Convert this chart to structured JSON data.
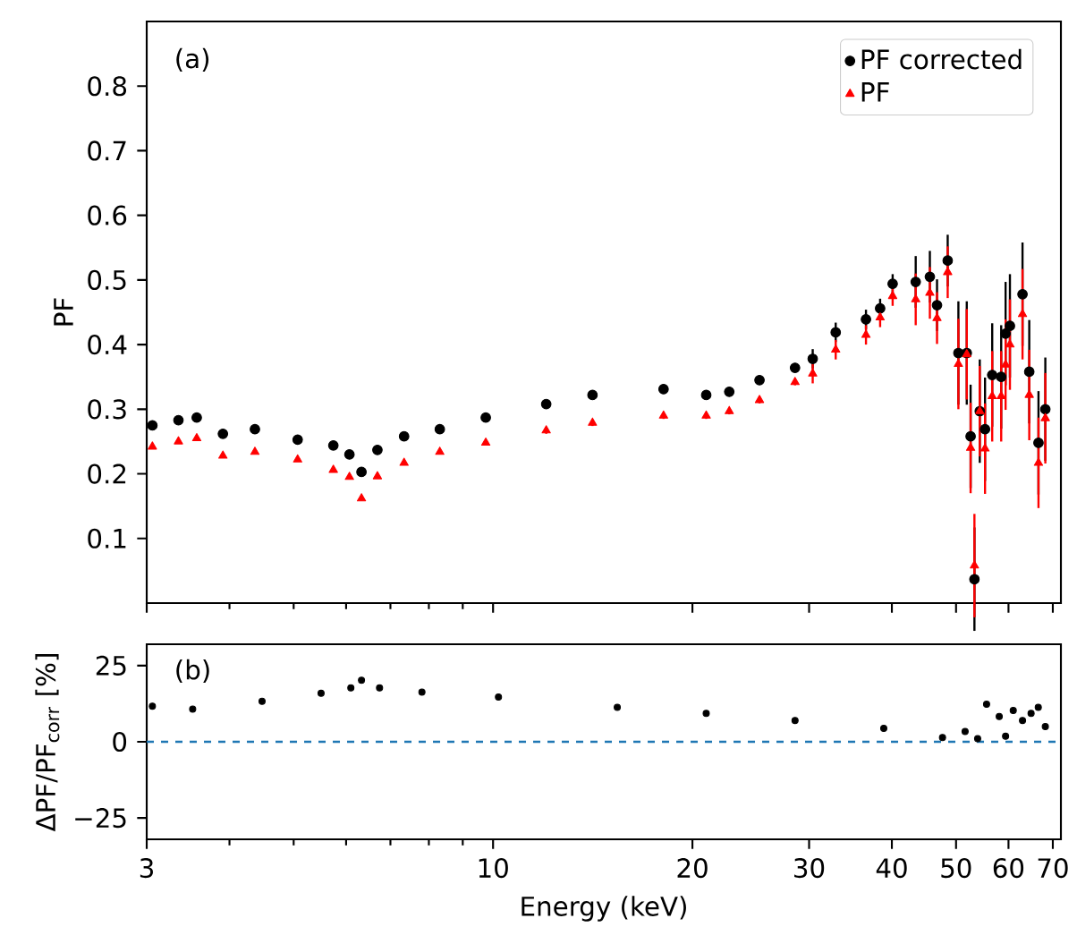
{
  "chart_data": [
    {
      "type": "scatter",
      "ylabel": "PF",
      "annotations": [
        "(a)"
      ],
      "log": "x",
      "xlim": [
        3,
        72
      ],
      "ylim": [
        0,
        0.9
      ],
      "xticks": [
        3,
        10,
        20,
        30,
        40,
        50,
        60,
        70
      ],
      "yticks": [
        0.1,
        0.2,
        0.3,
        0.4,
        0.5,
        0.6,
        0.7,
        0.8
      ],
      "tick_labels": "y",
      "legend": "top right",
      "x": [
        3.06,
        3.35,
        3.57,
        3.91,
        4.37,
        5.07,
        5.74,
        6.07,
        6.33,
        6.69,
        7.34,
        8.31,
        9.75,
        12.03,
        14.13,
        18.09,
        20.98,
        22.73,
        25.25,
        28.57,
        30.38,
        32.91,
        36.56,
        38.41,
        40.11,
        43.46,
        45.65,
        46.8,
        48.57,
        50.41,
        51.9,
        52.6,
        53.3,
        54.3,
        55.3,
        56.7,
        58.5,
        59.4,
        60.3,
        63.0,
        64.5,
        66.6,
        68.2
      ],
      "series": [
        {
          "name": "PF corrected",
          "color": "#000000",
          "marker": "circle",
          "values": [
            0.275,
            0.283,
            0.287,
            0.262,
            0.269,
            0.253,
            0.244,
            0.23,
            0.203,
            0.237,
            0.258,
            0.269,
            0.287,
            0.308,
            0.322,
            0.331,
            0.322,
            0.327,
            0.345,
            0.364,
            0.378,
            0.419,
            0.439,
            0.456,
            0.494,
            0.497,
            0.505,
            0.461,
            0.53,
            0.387,
            0.387,
            0.258,
            0.037,
            0.297,
            0.269,
            0.353,
            0.35,
            0.417,
            0.429,
            0.478,
            0.358,
            0.248,
            0.3
          ],
          "errors": [
            0.003,
            0.003,
            0.003,
            0.003,
            0.003,
            0.003,
            0.003,
            0.003,
            0.003,
            0.003,
            0.003,
            0.003,
            0.003,
            0.005,
            0.005,
            0.005,
            0.005,
            0.005,
            0.005,
            0.005,
            0.015,
            0.015,
            0.015,
            0.015,
            0.015,
            0.04,
            0.04,
            0.04,
            0.04,
            0.08,
            0.08,
            0.08,
            0.08,
            0.08,
            0.08,
            0.08,
            0.08,
            0.08,
            0.08,
            0.08,
            0.08,
            0.08,
            0.08
          ]
        },
        {
          "name": "PF",
          "color": "#ff0000",
          "marker": "triangle",
          "values": [
            0.242,
            0.25,
            0.255,
            0.228,
            0.234,
            0.222,
            0.206,
            0.195,
            0.162,
            0.196,
            0.217,
            0.234,
            0.248,
            0.267,
            0.279,
            0.29,
            0.29,
            0.297,
            0.314,
            0.342,
            0.355,
            0.392,
            0.415,
            0.442,
            0.475,
            0.47,
            0.48,
            0.441,
            0.512,
            0.37,
            0.385,
            0.24,
            0.058,
            0.297,
            0.239,
            0.32,
            0.32,
            0.369,
            0.4,
            0.447,
            0.322,
            0.217,
            0.286
          ],
          "errors": [
            0.003,
            0.003,
            0.003,
            0.003,
            0.003,
            0.003,
            0.003,
            0.003,
            0.003,
            0.003,
            0.003,
            0.003,
            0.003,
            0.005,
            0.005,
            0.005,
            0.005,
            0.005,
            0.005,
            0.005,
            0.015,
            0.015,
            0.015,
            0.015,
            0.015,
            0.04,
            0.04,
            0.04,
            0.04,
            0.07,
            0.07,
            0.07,
            0.08,
            0.07,
            0.07,
            0.07,
            0.07,
            0.07,
            0.07,
            0.07,
            0.07,
            0.07,
            0.07
          ]
        }
      ]
    },
    {
      "type": "scatter",
      "xlabel": "Energy (keV)",
      "ylabel": "ΔPF/PF$_{corr}$ [%]",
      "annotations": [
        "(b)"
      ],
      "log": "x",
      "xlim": [
        3,
        72
      ],
      "ylim": [
        -32,
        32
      ],
      "xticks": [
        3,
        10,
        20,
        30,
        40,
        50,
        60,
        70
      ],
      "yticks": [
        {
          "value": -25,
          "label": "−25"
        },
        0,
        25
      ],
      "ref_lines": [
        {
          "axis": "y",
          "value": 0,
          "color": "#1f77b4",
          "line_style": "dashed"
        }
      ],
      "x": [
        3.06,
        3.52,
        4.48,
        5.5,
        6.1,
        6.33,
        6.74,
        7.81,
        10.19,
        15.4,
        20.98,
        28.57,
        38.9,
        47.7,
        51.6,
        53.9,
        55.6,
        58.1,
        59.4,
        61.0,
        63.0,
        64.9,
        66.55,
        68.2
      ],
      "series": [
        {
          "color": "#000000",
          "marker": "circle",
          "values": [
            11.7,
            10.7,
            13.3,
            15.9,
            17.7,
            20.2,
            17.7,
            16.3,
            14.7,
            11.3,
            9.3,
            7.0,
            4.4,
            1.4,
            3.4,
            1.0,
            12.3,
            8.3,
            1.8,
            10.3,
            7.0,
            9.3,
            11.3,
            5.0
          ]
        }
      ]
    }
  ]
}
